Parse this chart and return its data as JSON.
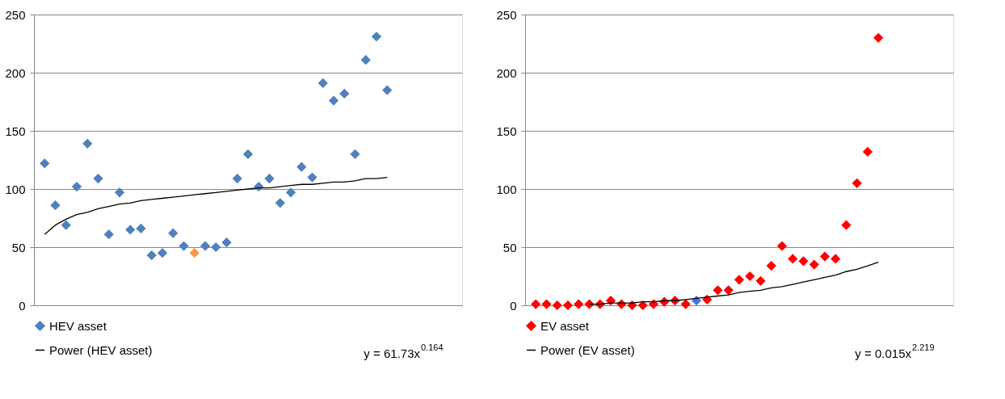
{
  "chart_data": [
    {
      "type": "scatter",
      "categories": [
        null,
        null,
        null,
        null,
        null,
        null,
        null,
        null,
        null,
        null,
        null,
        null,
        null,
        null,
        null,
        null,
        null,
        null,
        null,
        null,
        null,
        null,
        null,
        null,
        null,
        null,
        null,
        null,
        null,
        null,
        null,
        null,
        null
      ],
      "ylim": [
        0,
        250
      ],
      "yticks": [
        0,
        50,
        100,
        150,
        200,
        250
      ],
      "grid": "y",
      "legend": "bottom",
      "series": [
        {
          "name": "HEV asset",
          "marker": "diamond",
          "color": "#4f81bd",
          "colors": [
            "#4f81bd",
            "#4f81bd",
            "#4f81bd",
            "#4f81bd",
            "#4f81bd",
            "#4f81bd",
            "#4f81bd",
            "#4f81bd",
            "#4f81bd",
            "#4f81bd",
            "#4f81bd",
            "#4f81bd",
            "#4f81bd",
            "#4f81bd",
            "#f79646",
            "#4f81bd",
            "#4f81bd",
            "#4f81bd",
            "#4f81bd",
            "#4f81bd",
            "#4f81bd",
            "#4f81bd",
            "#4f81bd",
            "#4f81bd",
            "#4f81bd",
            "#4f81bd",
            "#4f81bd",
            "#4f81bd",
            "#4f81bd",
            "#4f81bd",
            "#4f81bd",
            "#4f81bd",
            "#4f81bd"
          ],
          "values": [
            122,
            86,
            69,
            102,
            139,
            109,
            61,
            97,
            65,
            66,
            43,
            45,
            62,
            51,
            45,
            51,
            50,
            54,
            109,
            130,
            102,
            109,
            88,
            97,
            119,
            110,
            191,
            176,
            182,
            130,
            211,
            231,
            185
          ]
        },
        {
          "name": "Power (HEV asset)",
          "type": "line",
          "marker": "none",
          "color": "#000000",
          "values": [
            61,
            69,
            74,
            78,
            80,
            83,
            85,
            87,
            88,
            90,
            91,
            92,
            93,
            94,
            95,
            96,
            97,
            98,
            99,
            100,
            101,
            101,
            102,
            103,
            104,
            104,
            105,
            106,
            106,
            107,
            109,
            109,
            110
          ]
        }
      ],
      "annotations": [
        "y = 61.73x$^{0.164}$"
      ]
    },
    {
      "type": "scatter",
      "categories": [
        null,
        null,
        null,
        null,
        null,
        null,
        null,
        null,
        null,
        null,
        null,
        null,
        null,
        null,
        null,
        null,
        null,
        null,
        null,
        null,
        null,
        null,
        null,
        null,
        null,
        null,
        null,
        null,
        null,
        null,
        null,
        null,
        null
      ],
      "ylim": [
        0,
        250
      ],
      "yticks": [
        0,
        50,
        100,
        150,
        200,
        250
      ],
      "grid": "y",
      "legend": "bottom",
      "series": [
        {
          "name": "EV asset",
          "marker": "diamond",
          "color": "#ff0000",
          "colors": [
            "#ff0000",
            "#ff0000",
            "#ff0000",
            "#ff0000",
            "#ff0000",
            "#ff0000",
            "#ff0000",
            "#ff0000",
            "#ff0000",
            "#ff0000",
            "#ff0000",
            "#ff0000",
            "#ff0000",
            "#ff0000",
            "#ff0000",
            "#4f6fe8",
            "#ff0000",
            "#ff0000",
            "#ff0000",
            "#ff0000",
            "#ff0000",
            "#ff0000",
            "#ff0000",
            "#ff0000",
            "#ff0000",
            "#ff0000",
            "#ff0000",
            "#ff0000",
            "#ff0000",
            "#ff0000",
            "#ff0000",
            "#ff0000",
            "#ff0000"
          ],
          "values": [
            1,
            1,
            0,
            0,
            1,
            1,
            1,
            4,
            1,
            0,
            0,
            1,
            3,
            4,
            1,
            4,
            5,
            13,
            13,
            22,
            25,
            21,
            34,
            51,
            40,
            38,
            35,
            42,
            40,
            69,
            105,
            132,
            230
          ]
        },
        {
          "name": "Power (EV asset)",
          "type": "line",
          "marker": "none",
          "color": "#000000",
          "values": [
            null,
            null,
            null,
            null,
            null,
            1,
            1,
            2,
            2,
            2,
            3,
            3,
            4,
            4,
            5,
            6,
            7,
            8,
            9,
            11,
            12,
            13,
            15,
            16,
            18,
            20,
            22,
            24,
            26,
            29,
            31,
            34,
            37
          ]
        }
      ],
      "annotations": [
        "y = 0.015x$^{2.219}$"
      ]
    }
  ]
}
